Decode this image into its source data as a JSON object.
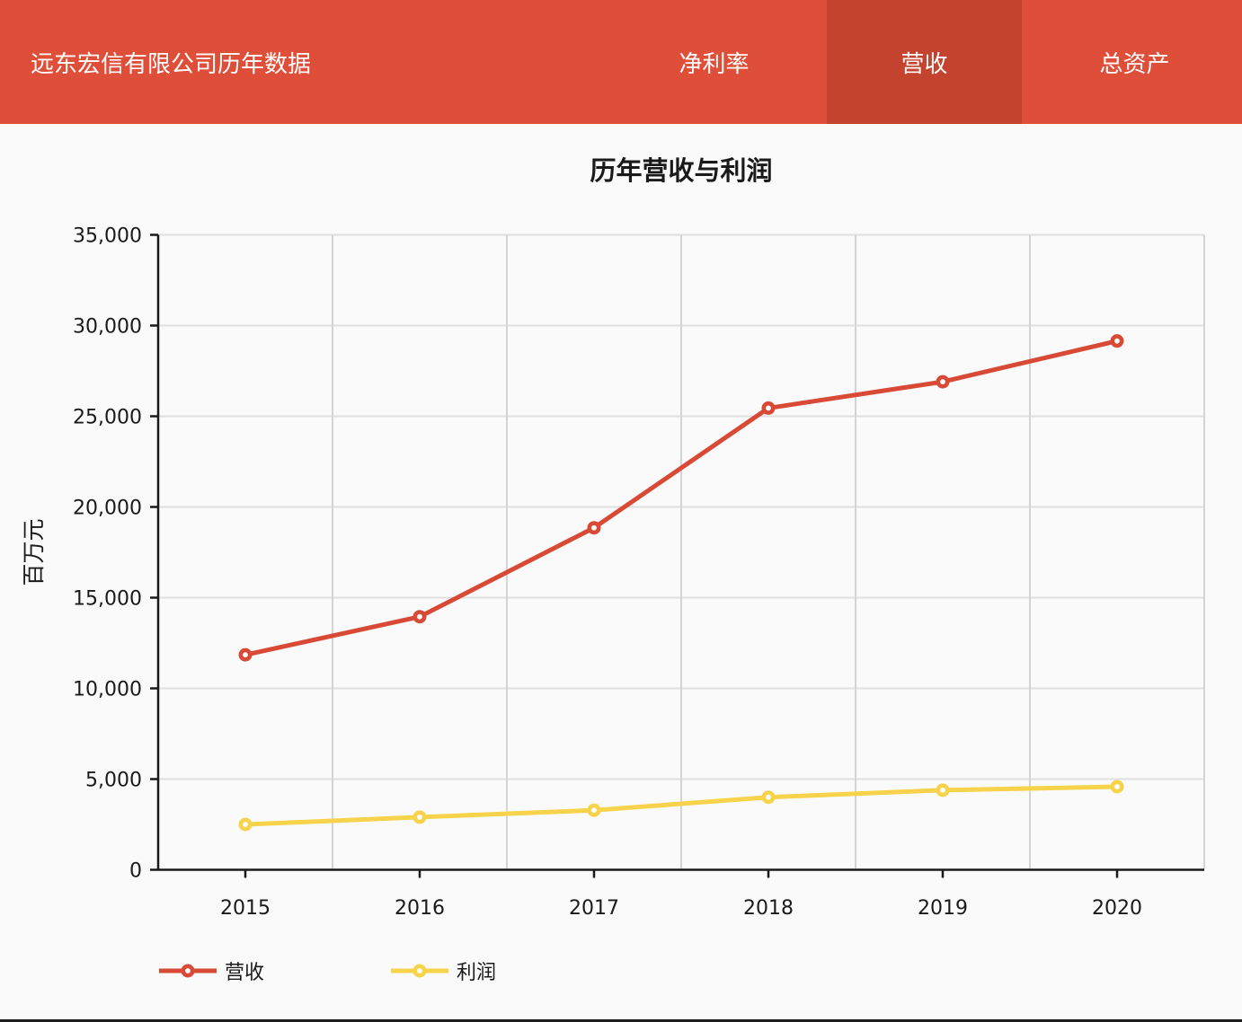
{
  "header": {
    "title": "远东宏信有限公司历年数据",
    "tabs": [
      {
        "label": "净利率",
        "active": false
      },
      {
        "label": "营收",
        "active": true
      },
      {
        "label": "总资产",
        "active": false
      }
    ]
  },
  "colors": {
    "header_bg": "#df4e39",
    "active_tab_bg": "#c4432f",
    "header_text": "#ffffff",
    "page_bg": "#fafafa",
    "grid_h": "#e0e0e0",
    "grid_v": "#d4d4d4",
    "axis": "#1a1a1a",
    "text": "#1a1a1a",
    "bottom_bar": "#1d1d1d"
  },
  "chart_data": {
    "type": "line",
    "title": "历年营收与利润",
    "xlabel": "",
    "ylabel": "百万元",
    "categories": [
      "2015",
      "2016",
      "2017",
      "2018",
      "2019",
      "2020"
    ],
    "series": [
      {
        "name": "营收",
        "color": "#d84a35",
        "values": [
          11850,
          13950,
          18850,
          25450,
          26900,
          29150
        ]
      },
      {
        "name": "利润",
        "color": "#f6d34a",
        "values": [
          2500,
          2900,
          3280,
          4000,
          4390,
          4580
        ]
      }
    ],
    "ylim": [
      0,
      35000
    ],
    "ytick_step": 5000,
    "ytick_labels": [
      "0",
      "5,000",
      "10,000",
      "15,000",
      "20,000",
      "25,000",
      "30,000",
      "35,000"
    ],
    "grid": true,
    "marker": "open-circle",
    "legend_position": "bottom"
  }
}
